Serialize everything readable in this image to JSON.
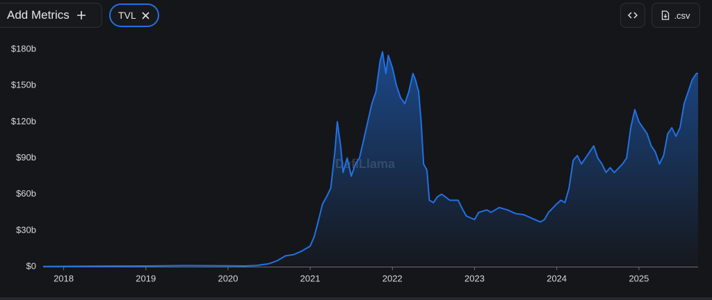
{
  "toolbar": {
    "add_metrics": "Add Metrics",
    "csv": ".csv"
  },
  "watermark": "DefiLlama",
  "chart_data": {
    "type": "area",
    "x": [
      2017.75,
      2018.0,
      2018.5,
      2019.0,
      2019.5,
      2020.0,
      2020.2,
      2020.35,
      2020.5,
      2020.6,
      2020.7,
      2020.8,
      2020.9,
      2021.0,
      2021.05,
      2021.1,
      2021.15,
      2021.2,
      2021.25,
      2021.3,
      2021.33,
      2021.37,
      2021.4,
      2021.45,
      2021.5,
      2021.55,
      2021.6,
      2021.65,
      2021.7,
      2021.75,
      2021.8,
      2021.85,
      2021.88,
      2021.92,
      2021.95,
      2022.0,
      2022.05,
      2022.1,
      2022.15,
      2022.2,
      2022.25,
      2022.28,
      2022.32,
      2022.35,
      2022.38,
      2022.42,
      2022.45,
      2022.5,
      2022.55,
      2022.6,
      2022.7,
      2022.8,
      2022.85,
      2022.9,
      2023.0,
      2023.05,
      2023.15,
      2023.2,
      2023.3,
      2023.4,
      2023.5,
      2023.6,
      2023.7,
      2023.8,
      2023.85,
      2023.9,
      2024.0,
      2024.05,
      2024.1,
      2024.15,
      2024.2,
      2024.25,
      2024.3,
      2024.4,
      2024.45,
      2024.5,
      2024.55,
      2024.6,
      2024.65,
      2024.7,
      2024.8,
      2024.85,
      2024.9,
      2024.95,
      2025.0,
      2025.05,
      2025.1,
      2025.15,
      2025.2,
      2025.25,
      2025.3,
      2025.35,
      2025.4,
      2025.45,
      2025.5,
      2025.55,
      2025.6,
      2025.65,
      2025.7,
      2025.72
    ],
    "series": [
      {
        "name": "TVL",
        "color": "#2172e5",
        "values": [
          0.1,
          0.3,
          0.5,
          0.6,
          0.9,
          0.7,
          0.6,
          1.0,
          2.5,
          5,
          9,
          10,
          13,
          17,
          25,
          38,
          52,
          58,
          65,
          95,
          120,
          100,
          78,
          90,
          75,
          85,
          90,
          105,
          120,
          135,
          145,
          170,
          178,
          160,
          175,
          165,
          150,
          140,
          135,
          145,
          160,
          155,
          145,
          120,
          85,
          80,
          55,
          53,
          58,
          60,
          55,
          55,
          48,
          42,
          39,
          45,
          47,
          45,
          49,
          47,
          44,
          43,
          40,
          37,
          39,
          45,
          52,
          55,
          53,
          65,
          88,
          92,
          85,
          95,
          100,
          90,
          85,
          78,
          82,
          78,
          85,
          90,
          115,
          130,
          120,
          115,
          110,
          100,
          95,
          85,
          92,
          110,
          115,
          108,
          115,
          135,
          145,
          155,
          160,
          160
        ]
      }
    ],
    "xlim": [
      2017.75,
      2025.72
    ],
    "xticks": [
      2018,
      2019,
      2020,
      2021,
      2022,
      2023,
      2024,
      2025
    ],
    "ylim": [
      0,
      180
    ],
    "yticks": [
      {
        "value": 0,
        "label": "$0"
      },
      {
        "value": 30,
        "label": "$30b"
      },
      {
        "value": 60,
        "label": "$60b"
      },
      {
        "value": 90,
        "label": "$90b"
      },
      {
        "value": 120,
        "label": "$120b"
      },
      {
        "value": 150,
        "label": "$150b"
      },
      {
        "value": 180,
        "label": "$180b"
      }
    ],
    "grid": false
  }
}
